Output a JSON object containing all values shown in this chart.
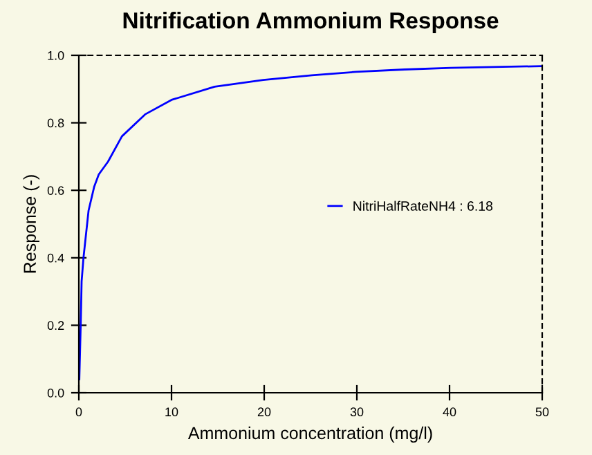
{
  "chart_data": {
    "type": "line",
    "title": "Nitrification Ammonium Response",
    "xlabel": "Ammonium concentration (mg/l)",
    "ylabel": "Response (-)",
    "series": [
      {
        "name": "NitriHalfRateNH4 : 6.18",
        "color": "#0000ff",
        "x": [
          0.05,
          0.2,
          0.3,
          0.5,
          1.05,
          1.65,
          2.15,
          3.15,
          4.65,
          7.15,
          10,
          14.65,
          19.9,
          25.15,
          29.9,
          35.15,
          40.15,
          50
        ],
        "values": [
          0.04,
          0.2,
          0.33,
          0.4,
          0.54,
          0.61,
          0.647,
          0.685,
          0.76,
          0.825,
          0.868,
          0.907,
          0.927,
          0.941,
          0.951,
          0.958,
          0.963,
          0.968
        ]
      }
    ],
    "xlim": [
      0,
      50
    ],
    "ylim": [
      0,
      1
    ],
    "xticks": [
      0,
      10,
      20,
      30,
      40,
      50
    ],
    "yticks": [
      {
        "value": 0,
        "label": "0.0"
      },
      0.2,
      0.4,
      0.6,
      0.8,
      {
        "value": 1,
        "label": "1.0"
      }
    ],
    "grid": false,
    "legend": "right",
    "marker": "none",
    "line_style": "solid"
  }
}
